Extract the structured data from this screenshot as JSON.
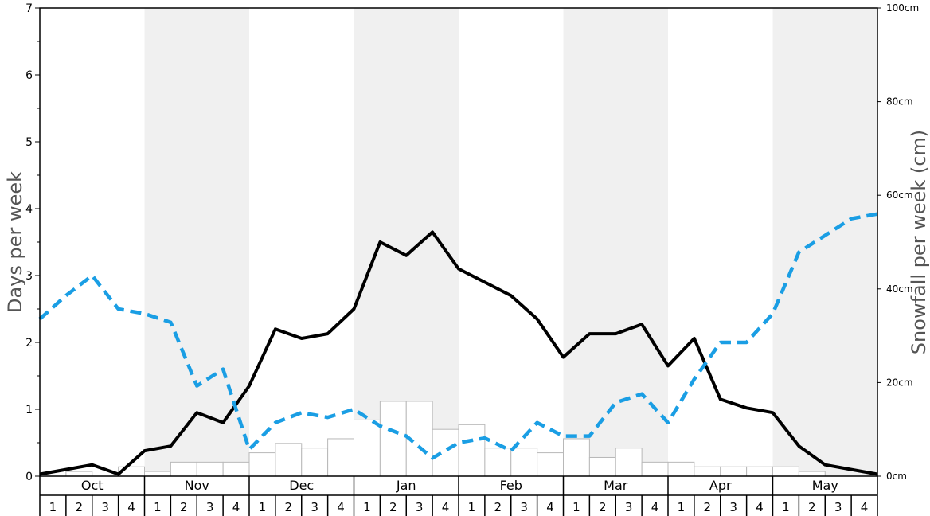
{
  "chart_data": {
    "type": "bar+line",
    "left_axis": {
      "label": "Days per week",
      "ylim": [
        0,
        7
      ],
      "ticks": [
        "0",
        "1",
        "2",
        "3",
        "4",
        "5",
        "6",
        "7"
      ]
    },
    "right_axis": {
      "label": "Snowfall per week (cm)",
      "ylim": [
        0,
        100
      ],
      "ticks": [
        "0cm",
        "20cm",
        "40cm",
        "60cm",
        "80cm",
        "100cm"
      ]
    },
    "months": [
      "Oct",
      "Nov",
      "Dec",
      "Jan",
      "Feb",
      "Mar",
      "Apr",
      "May"
    ],
    "weeks": [
      "1",
      "2",
      "3",
      "4"
    ],
    "shaded_months": [
      "Nov",
      "Jan",
      "Mar",
      "May"
    ],
    "series": [
      {
        "axis": "right",
        "style": "bars",
        "values": [
          0,
          1,
          0,
          2,
          1,
          3,
          3,
          3,
          5,
          7,
          6,
          8,
          12,
          16,
          16,
          10,
          11,
          6,
          6,
          5,
          8,
          4,
          6,
          3,
          3,
          2,
          2,
          2,
          2,
          1,
          0,
          0
        ]
      },
      {
        "axis": "left",
        "style": "solid",
        "color": "#000000",
        "values": [
          0.03,
          0.1,
          0.17,
          0.03,
          0.38,
          0.45,
          0.95,
          0.8,
          1.35,
          2.2,
          2.06,
          2.13,
          2.5,
          3.5,
          3.3,
          3.65,
          3.1,
          2.9,
          2.7,
          2.35,
          1.78,
          2.13,
          2.13,
          2.27,
          1.65,
          2.06,
          1.15,
          1.02,
          0.95,
          0.45,
          0.17,
          0.1,
          0.03
        ]
      },
      {
        "axis": "left",
        "style": "dashed",
        "color": "#1a9ee4",
        "values": [
          2.35,
          2.7,
          3.0,
          2.5,
          2.43,
          2.3,
          1.35,
          1.6,
          0.4,
          0.8,
          0.95,
          0.88,
          1.0,
          0.75,
          0.6,
          0.27,
          0.5,
          0.57,
          0.38,
          0.8,
          0.6,
          0.6,
          1.1,
          1.23,
          0.8,
          1.45,
          2.0,
          2.0,
          2.43,
          3.35,
          3.6,
          3.85,
          3.92
        ]
      }
    ]
  }
}
